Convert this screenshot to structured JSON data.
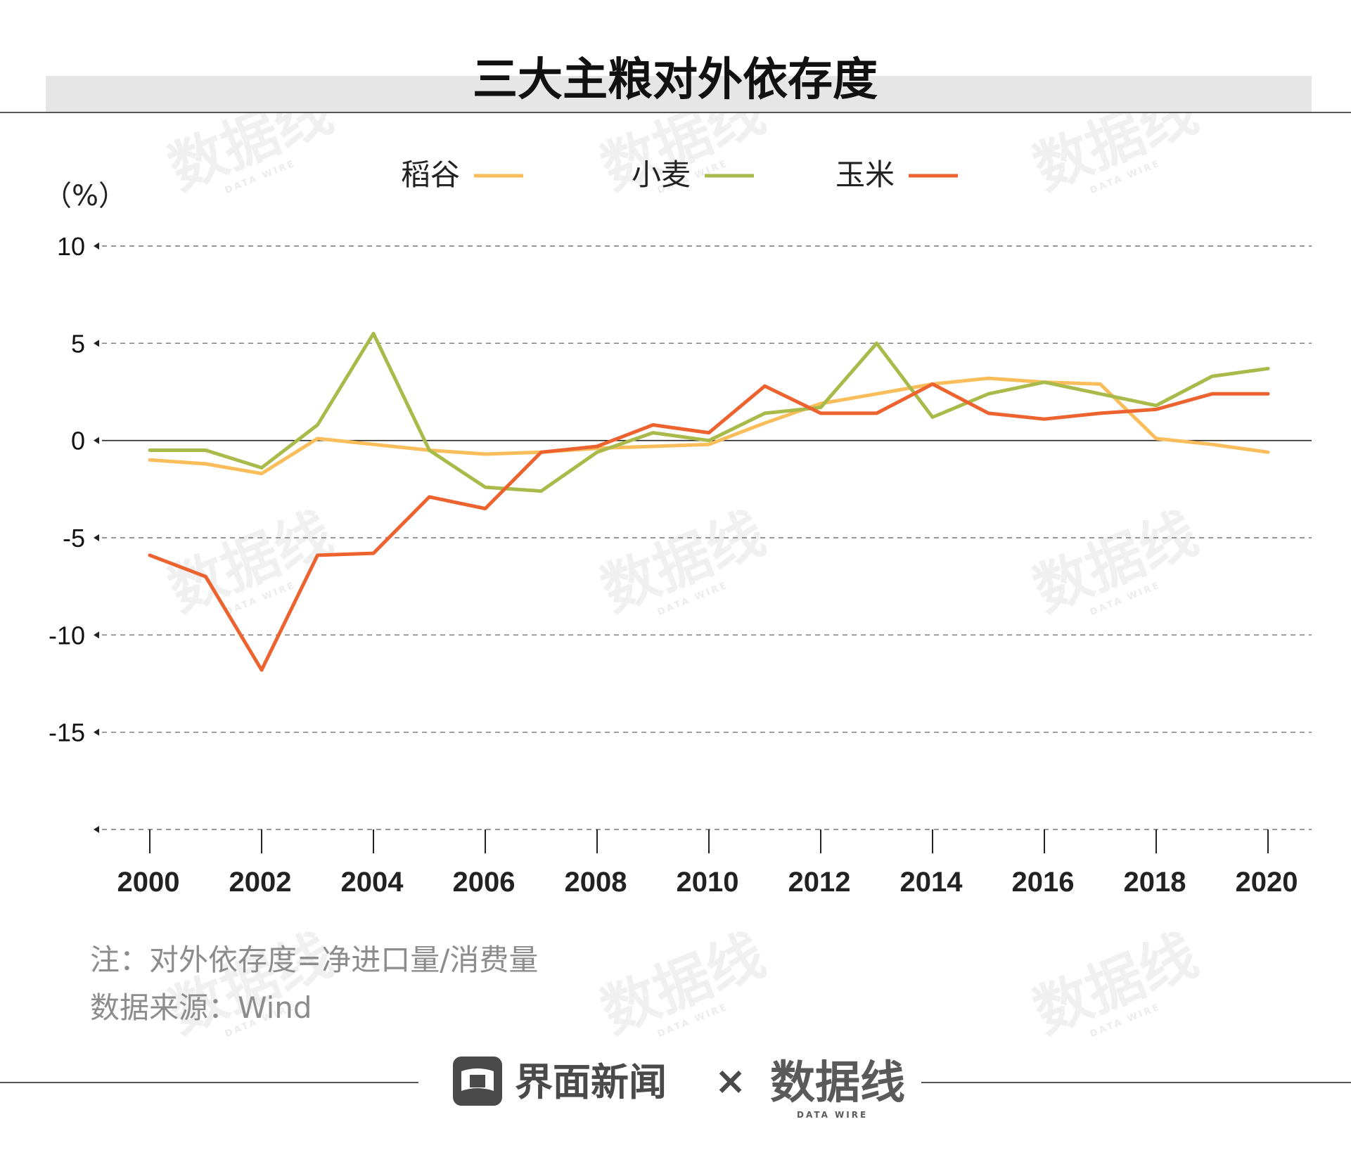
{
  "colors": {
    "rice": "#F9BE5B",
    "wheat": "#A9BA4A",
    "corn": "#EC6330",
    "band": "#E6E6E6"
  },
  "chart_data": {
    "type": "line",
    "title": "三大主粮对外依存度",
    "unit_label": "（%）",
    "xlabel": "",
    "ylabel": "%",
    "ylim": [
      -20,
      10
    ],
    "yticks": [
      10,
      5,
      0,
      -5,
      -10,
      -15
    ],
    "xticks": [
      "2000",
      "2002",
      "2004",
      "2006",
      "2008",
      "2010",
      "2012",
      "2014",
      "2016",
      "2018",
      "2020"
    ],
    "x": [
      2000,
      2001,
      2002,
      2003,
      2004,
      2005,
      2006,
      2007,
      2008,
      2009,
      2010,
      2011,
      2012,
      2013,
      2014,
      2015,
      2016,
      2017,
      2018,
      2019,
      2020
    ],
    "series": [
      {
        "name": "稻谷",
        "color_key": "rice",
        "values": [
          -1.0,
          -1.2,
          -1.7,
          0.1,
          -0.2,
          -0.5,
          -0.7,
          -0.6,
          -0.4,
          -0.3,
          -0.2,
          0.9,
          1.9,
          2.4,
          2.9,
          3.2,
          3.0,
          2.9,
          0.1,
          -0.2,
          -0.6
        ]
      },
      {
        "name": "小麦",
        "color_key": "wheat",
        "values": [
          -0.5,
          -0.5,
          -1.4,
          0.8,
          5.5,
          -0.5,
          -2.4,
          -2.6,
          -0.6,
          0.4,
          0.0,
          1.4,
          1.7,
          5.0,
          1.2,
          2.4,
          3.0,
          2.4,
          1.8,
          3.3,
          3.7
        ]
      },
      {
        "name": "玉米",
        "color_key": "corn",
        "values": [
          -5.9,
          -7.0,
          -11.8,
          -5.9,
          -5.8,
          -2.9,
          -3.5,
          -0.6,
          -0.3,
          0.8,
          0.4,
          2.8,
          1.4,
          1.4,
          2.9,
          1.4,
          1.1,
          1.4,
          1.6,
          2.4,
          2.4
        ]
      }
    ]
  },
  "notes": {
    "formula": "注：对外依存度=净进口量/消费量",
    "source": "数据来源：Wind"
  },
  "footer": {
    "brand_jiemian": "界面新闻",
    "times": "×",
    "brand_datawire": "数据线",
    "brand_datawire_sub": "DATA WIRE"
  },
  "watermark": {
    "text": "数据线",
    "sub": "DATA WIRE"
  }
}
